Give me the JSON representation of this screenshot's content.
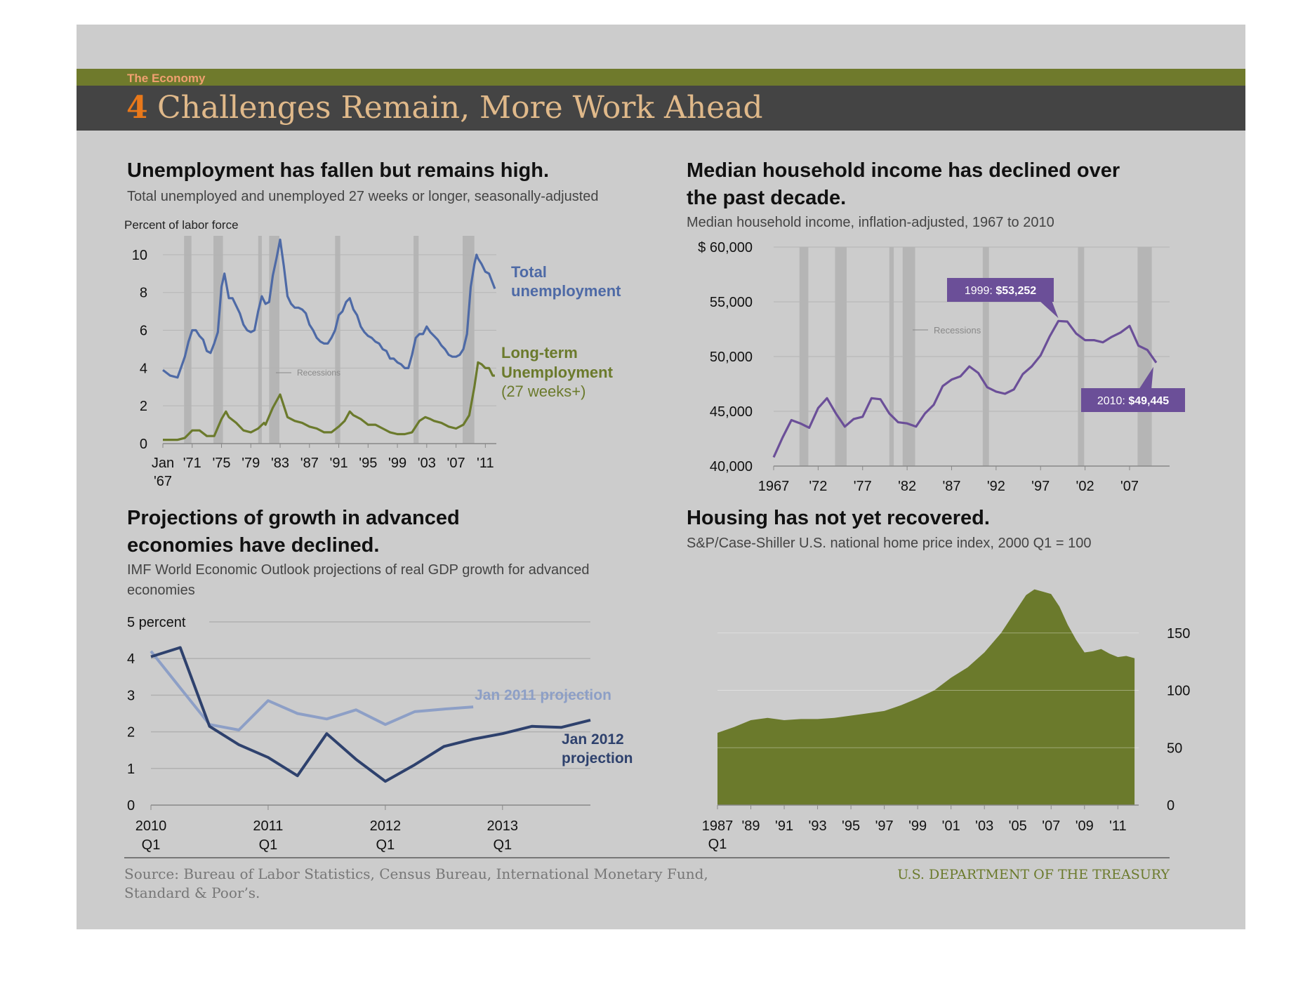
{
  "header": {
    "section": "The Economy",
    "number": "4",
    "title": "Challenges Remain, More Work Ahead"
  },
  "colors": {
    "background": "#cccccc",
    "header_band": "#444444",
    "header_stripe": "#6f7a2c",
    "section_text": "#f0a070",
    "number": "#e8781a",
    "title_text": "#e0b98a",
    "unemployment_total": "#4e6aa6",
    "unemployment_longterm": "#6b7a2c",
    "income": "#6b4f98",
    "gdp_2011": "#8d9fc6",
    "gdp_2012": "#2e416d",
    "housing": "#6b7a2c",
    "recession": "#b0b0b0",
    "treasury": "#6b7a2c"
  },
  "footer": {
    "source_line1": "Source: Bureau of Labor Statistics, Census Bureau, International Monetary Fund,",
    "source_line2": "Standard & Poor’s.",
    "agency": "U.S. DEPARTMENT OF THE TREASURY"
  },
  "chart_data": [
    {
      "id": "unemployment",
      "type": "line",
      "title": "Unemployment has fallen but remains high.",
      "subtitle": "Total unemployed and unemployed 27 weeks or longer, seasonally-adjusted",
      "ylabel": "Percent of labor force",
      "ylim": [
        0,
        11
      ],
      "xlim": [
        1967,
        2012.5
      ],
      "yticks": [
        "0",
        "2",
        "4",
        "6",
        "8",
        "10"
      ],
      "ytick_values": [
        0,
        2,
        4,
        6,
        8,
        10
      ],
      "xticks": [
        "Jan",
        "'71",
        "'75",
        "'79",
        "'83",
        "'87",
        "'91",
        "'95",
        "'99",
        "'03",
        "'07",
        "'11"
      ],
      "xtick_values": [
        1967,
        1971,
        1975,
        1979,
        1983,
        1987,
        1991,
        1995,
        1999,
        2003,
        2007,
        2011
      ],
      "xtick_sub": "'67",
      "recession_label": "Recessions",
      "recessions": [
        [
          1969.9,
          1970.9
        ],
        [
          1973.9,
          1975.2
        ],
        [
          1980.0,
          1980.5
        ],
        [
          1981.5,
          1982.9
        ],
        [
          1990.5,
          1991.2
        ],
        [
          2001.2,
          2001.9
        ],
        [
          2007.9,
          2009.5
        ]
      ],
      "grid": true,
      "series": [
        {
          "name": "Total unemployment",
          "x": [
            1967,
            1968,
            1969,
            1970,
            1970.5,
            1971,
            1971.5,
            1972,
            1972.5,
            1973,
            1973.5,
            1974,
            1974.5,
            1975,
            1975.4,
            1976,
            1976.5,
            1977,
            1977.5,
            1978,
            1978.5,
            1979,
            1979.5,
            1980,
            1980.5,
            1981,
            1981.5,
            1982,
            1982.5,
            1983,
            1983.5,
            1984,
            1984.5,
            1985,
            1985.5,
            1986,
            1986.5,
            1987,
            1987.5,
            1988,
            1988.5,
            1989,
            1989.5,
            1990,
            1990.5,
            1991,
            1991.5,
            1992,
            1992.5,
            1993,
            1993.5,
            1994,
            1994.5,
            1995,
            1995.5,
            1996,
            1996.5,
            1997,
            1997.5,
            1998,
            1998.5,
            1999,
            1999.5,
            2000,
            2000.5,
            2001,
            2001.5,
            2002,
            2002.5,
            2003,
            2003.5,
            2004,
            2004.5,
            2005,
            2005.5,
            2006,
            2006.5,
            2007,
            2007.5,
            2008,
            2008.5,
            2009,
            2009.5,
            2009.8,
            2010,
            2010.5,
            2011,
            2011.5,
            2012,
            2012.3
          ],
          "values": [
            3.9,
            3.6,
            3.5,
            4.6,
            5.4,
            6.0,
            6.0,
            5.7,
            5.5,
            4.9,
            4.8,
            5.3,
            5.9,
            8.3,
            9.0,
            7.7,
            7.7,
            7.3,
            6.9,
            6.3,
            6.0,
            5.9,
            6.0,
            7.0,
            7.8,
            7.4,
            7.5,
            8.9,
            9.8,
            10.8,
            9.4,
            7.8,
            7.4,
            7.2,
            7.2,
            7.1,
            6.9,
            6.3,
            6.0,
            5.6,
            5.4,
            5.3,
            5.3,
            5.6,
            6.0,
            6.8,
            7.0,
            7.5,
            7.7,
            7.1,
            6.8,
            6.2,
            5.9,
            5.7,
            5.6,
            5.4,
            5.3,
            5.0,
            4.9,
            4.5,
            4.5,
            4.3,
            4.2,
            4.0,
            4.0,
            4.7,
            5.6,
            5.8,
            5.8,
            6.2,
            5.9,
            5.7,
            5.5,
            5.2,
            5.0,
            4.7,
            4.6,
            4.6,
            4.7,
            5.0,
            5.8,
            8.3,
            9.5,
            10.0,
            9.8,
            9.5,
            9.1,
            9.0,
            8.5,
            8.2
          ]
        },
        {
          "name": "Long-term Unemployment (27 weeks+)",
          "x": [
            1967,
            1968,
            1969,
            1970,
            1971,
            1972,
            1973,
            1974,
            1975,
            1975.6,
            1976,
            1977,
            1978,
            1979,
            1980,
            1980.8,
            1981,
            1982,
            1983,
            1983.5,
            1984,
            1985,
            1986,
            1987,
            1988,
            1989,
            1990,
            1991,
            1991.8,
            1992.5,
            1993,
            1994,
            1995,
            1996,
            1997,
            1998,
            1999,
            2000,
            2001,
            2002,
            2002.8,
            2003.5,
            2004,
            2005,
            2006,
            2007,
            2008,
            2008.8,
            2009.5,
            2010,
            2010.5,
            2011,
            2011.5,
            2012,
            2012.3
          ],
          "values": [
            0.2,
            0.2,
            0.2,
            0.3,
            0.7,
            0.7,
            0.4,
            0.4,
            1.3,
            1.7,
            1.4,
            1.1,
            0.7,
            0.6,
            0.8,
            1.1,
            1.0,
            1.9,
            2.6,
            2.0,
            1.4,
            1.2,
            1.1,
            0.9,
            0.8,
            0.6,
            0.6,
            0.9,
            1.2,
            1.7,
            1.5,
            1.3,
            1.0,
            1.0,
            0.8,
            0.6,
            0.5,
            0.5,
            0.6,
            1.2,
            1.4,
            1.3,
            1.2,
            1.1,
            0.9,
            0.8,
            1.0,
            1.5,
            3.0,
            4.3,
            4.2,
            4.0,
            4.0,
            3.6,
            3.6
          ]
        }
      ],
      "labels": {
        "total_line1": "Total",
        "total_line2": "unemployment",
        "lt_line1": "Long-term",
        "lt_line2": "Unemployment",
        "lt_line3": "(27 weeks+)"
      }
    },
    {
      "id": "income",
      "type": "line",
      "title_line1": "Median household income has declined over",
      "title_line2": "the past decade.",
      "subtitle": "Median household income, inflation-adjusted, 1967 to 2010",
      "ylim": [
        40000,
        60000
      ],
      "xlim": [
        1967,
        2011.5
      ],
      "yticks": [
        "$ 60,000",
        "55,000",
        "50,000",
        "45,000",
        "40,000"
      ],
      "ytick_values": [
        60000,
        55000,
        50000,
        45000,
        40000
      ],
      "xticks": [
        "1967",
        "'72",
        "'77",
        "'82",
        "'87",
        "'92",
        "'97",
        "'02",
        "'07"
      ],
      "xtick_values": [
        1967,
        1972,
        1977,
        1982,
        1987,
        1992,
        1997,
        2002,
        2007
      ],
      "recession_label": "Recessions",
      "recessions": [
        [
          1969.9,
          1970.9
        ],
        [
          1973.9,
          1975.2
        ],
        [
          1980.0,
          1980.5
        ],
        [
          1981.5,
          1982.9
        ],
        [
          1990.5,
          1991.2
        ],
        [
          2001.2,
          2001.9
        ],
        [
          2007.9,
          2009.5
        ]
      ],
      "grid": true,
      "series": [
        {
          "name": "",
          "x": [
            1967,
            1968,
            1969,
            1970,
            1971,
            1972,
            1973,
            1974,
            1975,
            1976,
            1977,
            1978,
            1979,
            1980,
            1981,
            1982,
            1983,
            1984,
            1985,
            1986,
            1987,
            1988,
            1989,
            1990,
            1991,
            1992,
            1993,
            1994,
            1995,
            1996,
            1997,
            1998,
            1999,
            2000,
            2001,
            2002,
            2003,
            2004,
            2005,
            2006,
            2007,
            2008,
            2009,
            2010
          ],
          "values": [
            40800,
            42600,
            44200,
            43900,
            43500,
            45300,
            46200,
            44800,
            43600,
            44300,
            44500,
            46200,
            46100,
            44800,
            44000,
            43900,
            43600,
            44800,
            45600,
            47300,
            47900,
            48200,
            49100,
            48500,
            47200,
            46800,
            46600,
            47000,
            48400,
            49100,
            50100,
            51800,
            53252,
            53200,
            52100,
            51500,
            51500,
            51300,
            51800,
            52200,
            52800,
            51000,
            50600,
            49445
          ]
        }
      ],
      "annotations": [
        {
          "year": "1999:",
          "value": "$53,252"
        },
        {
          "year": "2010:",
          "value": "$49,445"
        }
      ]
    },
    {
      "id": "gdp",
      "type": "line",
      "title_line1": "Projections of growth in advanced",
      "title_line2": "economies have declined.",
      "subtitle_line1": "IMF World Economic Outlook  projections of real GDP growth for advanced",
      "subtitle_line2": "economies",
      "ylim": [
        0,
        5
      ],
      "xlim": [
        2010,
        2013.75
      ],
      "yticks": [
        "0",
        "1",
        "2",
        "3",
        "4",
        "5 percent"
      ],
      "ytick_values": [
        0,
        1,
        2,
        3,
        4,
        5
      ],
      "xticks": [
        "2010",
        "2011",
        "2012",
        "2013"
      ],
      "xtick_values": [
        2010,
        2011,
        2012,
        2013
      ],
      "xtick_sub": "Q1",
      "grid": true,
      "series": [
        {
          "name": "Jan 2011 projection",
          "x": [
            2010,
            2010.25,
            2010.5,
            2010.75,
            2011,
            2011.25,
            2011.5,
            2011.75,
            2012,
            2012.25,
            2012.5,
            2012.75
          ],
          "values": [
            4.2,
            3.2,
            2.2,
            2.05,
            2.85,
            2.5,
            2.35,
            2.6,
            2.2,
            2.55,
            2.62,
            2.68
          ]
        },
        {
          "name": "Jan 2012 projection",
          "x": [
            2010,
            2010.25,
            2010.5,
            2010.75,
            2011,
            2011.25,
            2011.5,
            2011.75,
            2012,
            2012.25,
            2012.5,
            2012.75,
            2013,
            2013.25,
            2013.5,
            2013.75
          ],
          "values": [
            4.05,
            4.3,
            2.15,
            1.65,
            1.3,
            0.8,
            1.95,
            1.25,
            0.65,
            1.1,
            1.6,
            1.8,
            1.95,
            2.15,
            2.12,
            2.32
          ]
        }
      ],
      "labels": {
        "p2011": "Jan 2011 projection",
        "p2012_line1": "Jan 2012",
        "p2012_line2": "projection"
      }
    },
    {
      "id": "housing",
      "type": "area",
      "title": "Housing has not yet recovered.",
      "subtitle": "S&P/Case-Shiller U.S. national home price index, 2000 Q1 = 100",
      "ylim": [
        0,
        200
      ],
      "xlim": [
        1987,
        2012.25
      ],
      "yticks": [
        "0",
        "50",
        "100",
        "150"
      ],
      "ytick_values": [
        0,
        50,
        100,
        150
      ],
      "xticks": [
        "1987",
        "'89",
        "'91",
        "'93",
        "'95",
        "'97",
        "'99",
        "'01",
        "'03",
        "'05",
        "'07",
        "'09",
        "'11"
      ],
      "xtick_values": [
        1987,
        1989,
        1991,
        1993,
        1995,
        1997,
        1999,
        2001,
        2003,
        2005,
        2007,
        2009,
        2011
      ],
      "xtick_sub": "Q1",
      "grid": true,
      "series": [
        {
          "name": "",
          "x": [
            1987,
            1988,
            1989,
            1990,
            1991,
            1992,
            1993,
            1994,
            1995,
            1996,
            1997,
            1998,
            1999,
            2000,
            2001,
            2002,
            2003,
            2004,
            2005,
            2005.5,
            2006,
            2006.5,
            2007,
            2007.5,
            2008,
            2008.5,
            2009,
            2009.5,
            2010,
            2010.5,
            2011,
            2011.5,
            2012
          ],
          "values": [
            63,
            68,
            74,
            76,
            74,
            75,
            75,
            76,
            78,
            80,
            82,
            87,
            93,
            100,
            111,
            120,
            133,
            150,
            172,
            183,
            188,
            186,
            184,
            173,
            157,
            144,
            133,
            134,
            136,
            132,
            129,
            130,
            128
          ]
        }
      ]
    }
  ]
}
